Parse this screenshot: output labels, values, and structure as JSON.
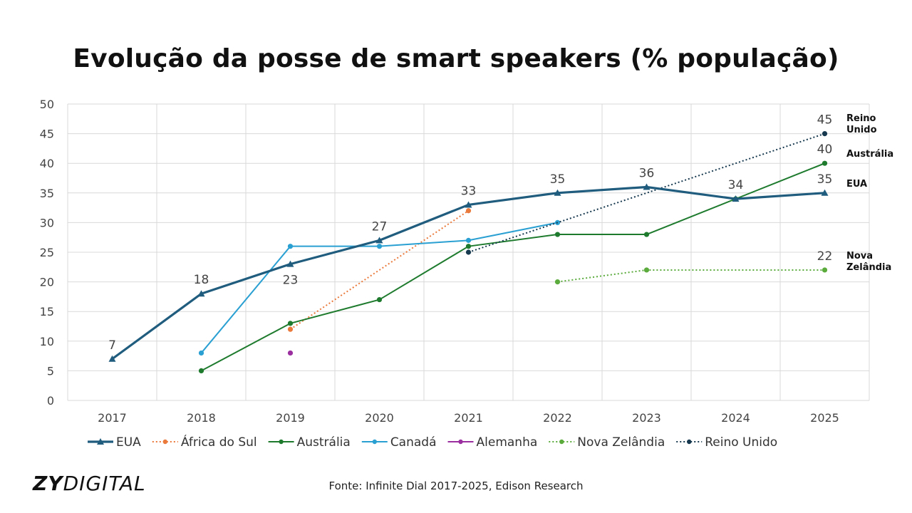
{
  "chart_data": {
    "type": "line",
    "title": "Evolução da posse de smart speakers (% população)",
    "categories": [
      "2017",
      "2018",
      "2019",
      "2020",
      "2021",
      "2022",
      "2023",
      "2024",
      "2025"
    ],
    "ylim": [
      0,
      50
    ],
    "yticks": [
      0,
      5,
      10,
      15,
      20,
      25,
      30,
      35,
      40,
      45,
      50
    ],
    "grid": true,
    "legend_position": "bottom",
    "series": [
      {
        "name": "EUA",
        "color": "#1f5c7d",
        "marker": "triangle",
        "dashed": false,
        "width": 3.2,
        "values": [
          7,
          18,
          23,
          27,
          33,
          35,
          36,
          34,
          35
        ],
        "labels": [
          "7",
          "18",
          "23",
          "27",
          "33",
          "35",
          "36",
          "34",
          "35"
        ],
        "end_label": "EUA"
      },
      {
        "name": "África do Sul",
        "color": "#ea7a3c",
        "marker": "circle",
        "dashed": true,
        "width": 2,
        "values": [
          null,
          null,
          12,
          null,
          32,
          null,
          null,
          null,
          null
        ]
      },
      {
        "name": "Austrália",
        "color": "#1e7b2e",
        "marker": "circle",
        "dashed": false,
        "width": 2,
        "values": [
          null,
          5,
          13,
          17,
          26,
          28,
          28,
          34,
          40
        ],
        "labels": [
          null,
          null,
          null,
          null,
          null,
          null,
          null,
          null,
          "40"
        ],
        "end_label": "Austrália"
      },
      {
        "name": "Canadá",
        "color": "#2aa0d2",
        "marker": "circle",
        "dashed": false,
        "width": 2,
        "values": [
          null,
          8,
          26,
          26,
          27,
          30,
          null,
          null,
          null
        ]
      },
      {
        "name": "Alemanha",
        "color": "#9b2fa0",
        "marker": "circle",
        "dashed": false,
        "width": 2,
        "values": [
          null,
          null,
          8,
          null,
          null,
          null,
          null,
          null,
          null
        ]
      },
      {
        "name": "Nova Zelândia",
        "color": "#5aab3c",
        "marker": "circle",
        "dashed": true,
        "width": 2,
        "values": [
          null,
          null,
          null,
          null,
          null,
          20,
          22,
          null,
          22
        ],
        "labels": [
          null,
          null,
          null,
          null,
          null,
          null,
          null,
          null,
          "22"
        ],
        "end_label": "Nova Zelândia"
      },
      {
        "name": "Reino Unido",
        "color": "#17394f",
        "marker": "circle",
        "dashed": true,
        "width": 2,
        "values": [
          null,
          null,
          null,
          null,
          25,
          null,
          null,
          null,
          45
        ],
        "labels": [
          null,
          null,
          null,
          null,
          null,
          null,
          null,
          null,
          "45"
        ],
        "end_label": "Reino Unido"
      }
    ]
  },
  "footer": {
    "logo_bold": "ZY",
    "logo_light": "DIGITAL",
    "source": "Fonte: Infinite Dial 2017-2025, Edison Research"
  }
}
